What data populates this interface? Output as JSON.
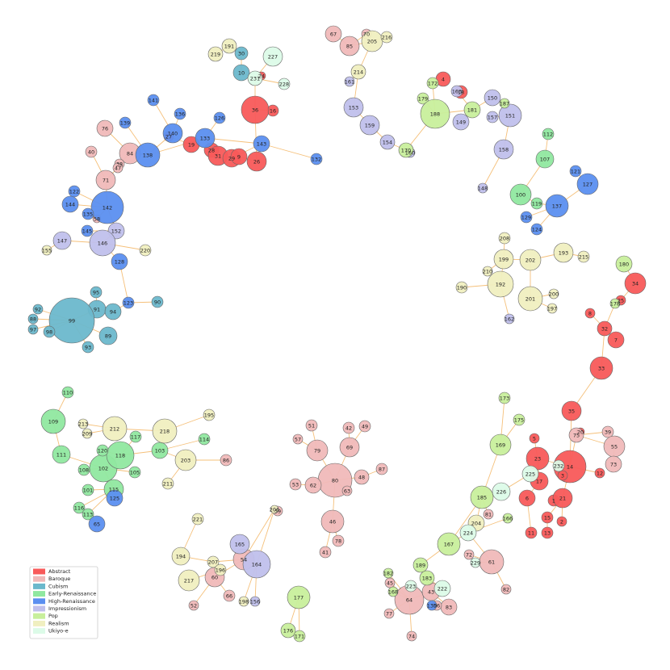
{
  "legend": [
    {
      "name": "Abstract",
      "color": "#f85a5a",
      "nodes": [
        "4",
        "16",
        "24",
        "36",
        "19",
        "28",
        "31",
        "29",
        "9",
        "26",
        "27",
        "18",
        "34",
        "25",
        "8",
        "32",
        "7",
        "33",
        "35",
        "5",
        "23",
        "14",
        "3",
        "17",
        "12",
        "6",
        "1",
        "21",
        "15",
        "2",
        "11",
        "13",
        "20"
      ]
    },
    {
      "name": "Baroque",
      "color": "#f0b9b9",
      "nodes": [
        "67",
        "70",
        "85",
        "76",
        "40",
        "84",
        "38",
        "47",
        "71",
        "58",
        "75",
        "39",
        "55",
        "73",
        "51",
        "57",
        "79",
        "42",
        "49",
        "69",
        "80",
        "87",
        "48",
        "63",
        "53",
        "62",
        "46",
        "78",
        "41",
        "81",
        "72",
        "61",
        "82",
        "45",
        "64",
        "43",
        "83",
        "77",
        "74",
        "54",
        "60",
        "52",
        "66",
        "59",
        "86",
        "56"
      ]
    },
    {
      "name": "Cubism",
      "color": "#6bb8cc",
      "nodes": [
        "30",
        "10",
        "95",
        "91",
        "94",
        "99",
        "92",
        "88",
        "97",
        "98",
        "89",
        "93",
        "90"
      ]
    },
    {
      "name": "Early-Renaissance",
      "color": "#90e8a0",
      "nodes": [
        "107",
        "112",
        "100",
        "119",
        "110",
        "109",
        "111",
        "102",
        "118",
        "120",
        "117",
        "103",
        "114",
        "105",
        "108",
        "115",
        "101",
        "116",
        "113"
      ]
    },
    {
      "name": "High-Renaissance",
      "color": "#5b8ff0",
      "nodes": [
        "141",
        "136",
        "139",
        "140",
        "138",
        "133",
        "126",
        "143",
        "132",
        "122",
        "144",
        "142",
        "135",
        "145",
        "128",
        "123",
        "121",
        "127",
        "137",
        "129",
        "124",
        "125",
        "65",
        "130"
      ]
    },
    {
      "name": "Impressionism",
      "color": "#c0c0ec",
      "nodes": [
        "161",
        "153",
        "159",
        "154",
        "160",
        "163",
        "149",
        "150",
        "157",
        "151",
        "158",
        "148",
        "162",
        "152",
        "147",
        "146",
        "165",
        "164",
        "156"
      ]
    },
    {
      "name": "Pop",
      "color": "#c8ef9c",
      "nodes": [
        "172",
        "179",
        "188",
        "181",
        "187",
        "170",
        "180",
        "178",
        "173",
        "175",
        "169",
        "185",
        "166",
        "167",
        "189",
        "183",
        "182",
        "168",
        "177",
        "176",
        "171"
      ]
    },
    {
      "name": "Realism",
      "color": "#f0efc0",
      "nodes": [
        "191",
        "219",
        "205",
        "216",
        "214",
        "208",
        "199",
        "202",
        "193",
        "215",
        "210",
        "192",
        "190",
        "201",
        "200",
        "197",
        "220",
        "155",
        "212",
        "213",
        "209",
        "218",
        "195",
        "203",
        "211",
        "204",
        "221",
        "194",
        "207",
        "196",
        "217",
        "198",
        "206"
      ]
    },
    {
      "name": "Ukiyo-e",
      "color": "#dcfbe8",
      "nodes": [
        "227",
        "231",
        "228",
        "226",
        "225",
        "232",
        "224",
        "229",
        "222",
        "223"
      ]
    }
  ]
}
